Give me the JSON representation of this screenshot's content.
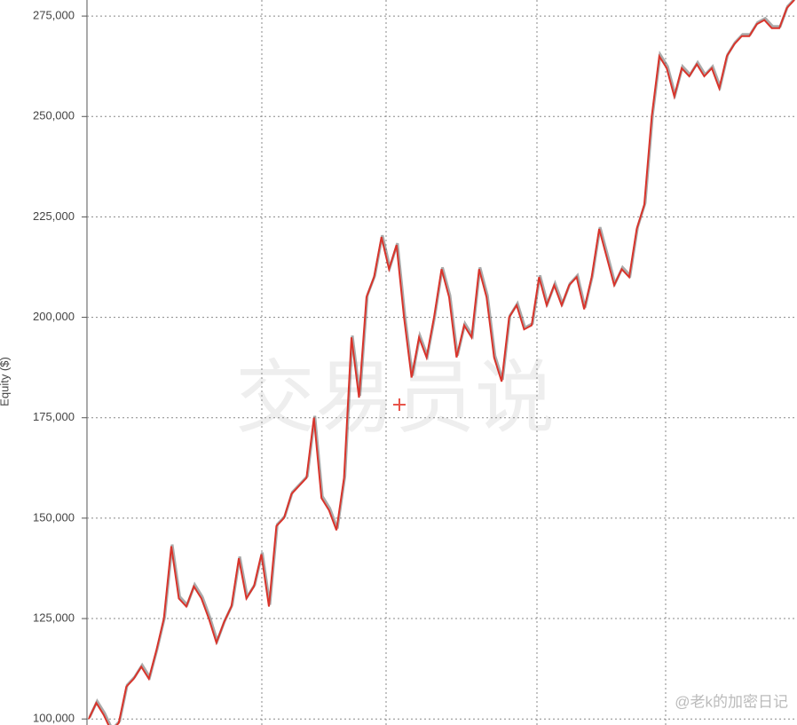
{
  "chart_data": {
    "type": "line",
    "y_label": "Equity ($)",
    "watermark": "交易员说",
    "credit": "@老k的加密日记",
    "ylim": [
      98500,
      279000
    ],
    "yticks": [
      {
        "value": 100000,
        "label": "100,000"
      },
      {
        "value": 125000,
        "label": "125,000"
      },
      {
        "value": 150000,
        "label": "150,000"
      },
      {
        "value": 175000,
        "label": "175,000"
      },
      {
        "value": 200000,
        "label": "200,000"
      },
      {
        "value": 225000,
        "label": "225,000"
      },
      {
        "value": 250000,
        "label": "250,000"
      },
      {
        "value": 275000,
        "label": "275,000"
      }
    ],
    "grid": true,
    "series": [
      {
        "name": "Equity",
        "color": "#d9342b",
        "values": [
          100000,
          104000,
          101000,
          97000,
          99000,
          108000,
          110000,
          113000,
          110000,
          117000,
          125000,
          143000,
          130000,
          128000,
          133000,
          130000,
          125000,
          119000,
          124000,
          128000,
          140000,
          130000,
          133000,
          141000,
          128000,
          148000,
          150000,
          156000,
          158000,
          160000,
          175000,
          155000,
          152000,
          147000,
          160000,
          195000,
          180000,
          205000,
          210000,
          220000,
          212000,
          218000,
          200000,
          185000,
          195000,
          190000,
          200000,
          212000,
          205000,
          190000,
          198000,
          195000,
          212000,
          205000,
          190000,
          184000,
          200000,
          203000,
          197000,
          198000,
          210000,
          203000,
          208000,
          203000,
          208000,
          210000,
          202000,
          210000,
          222000,
          215000,
          208000,
          212000,
          210000,
          222000,
          228000,
          250000,
          265000,
          262000,
          255000,
          262000,
          260000,
          263000,
          260000,
          262000,
          257000,
          265000,
          268000,
          270000,
          270000,
          273000,
          274000,
          272000,
          272000,
          277000,
          279000
        ]
      }
    ]
  }
}
